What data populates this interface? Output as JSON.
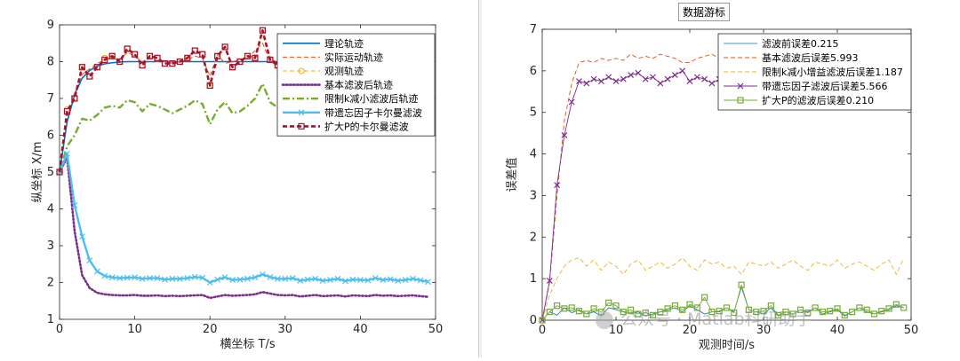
{
  "chart_data": [
    {
      "type": "line",
      "title": "",
      "xlabel": "横坐标 T/s",
      "ylabel": "纵坐标 X/m",
      "xlim": [
        0,
        50
      ],
      "ylim": [
        1,
        9
      ],
      "xticks": [
        0,
        10,
        20,
        30,
        40,
        50
      ],
      "yticks": [
        1,
        2,
        3,
        4,
        5,
        6,
        7,
        8,
        9
      ],
      "legend_position": "top-right",
      "x": [
        0,
        1,
        2,
        3,
        4,
        5,
        6,
        7,
        8,
        9,
        10,
        11,
        12,
        13,
        14,
        15,
        16,
        17,
        18,
        19,
        20,
        21,
        22,
        23,
        24,
        25,
        26,
        27,
        28,
        29,
        30,
        31,
        32,
        33,
        34,
        35,
        36,
        37,
        38,
        39,
        40,
        41,
        42,
        43,
        44,
        45,
        46,
        47,
        48,
        49
      ],
      "series": [
        {
          "name": "理论轨迹",
          "color": "#0072BD",
          "style": "solid",
          "marker": "none",
          "values": [
            5,
            6.36,
            7.1,
            7.55,
            7.76,
            7.88,
            7.94,
            7.97,
            7.99,
            8,
            8,
            8,
            8,
            8,
            8,
            8,
            8,
            8,
            8,
            8,
            8,
            8,
            8,
            8,
            8,
            8,
            8,
            8,
            8,
            8,
            8,
            8,
            8,
            8,
            8,
            8,
            8,
            8,
            8,
            8,
            8,
            8,
            8,
            8,
            8,
            8,
            8,
            8,
            8,
            8
          ]
        },
        {
          "name": "实际运动轨迹",
          "color": "#D95319",
          "style": "dashed",
          "marker": "none",
          "values": [
            5,
            6.5,
            7.15,
            7.65,
            7.8,
            7.95,
            8.05,
            8.1,
            8.05,
            8.25,
            8.15,
            8.0,
            8.1,
            8.0,
            8.0,
            7.95,
            8.0,
            8.05,
            8.15,
            8.1,
            7.6,
            8.2,
            7.95,
            8.0,
            8.05,
            8.1,
            8.3,
            8.5,
            8.0,
            8.05,
            8.15,
            8.1,
            8.0,
            8.05,
            7.95,
            8.0,
            8.05,
            8.0,
            8.1,
            8.0,
            7.95,
            8.0,
            8.05,
            8.0,
            8.05,
            7.95,
            8.0,
            8.05,
            8.0,
            7.9
          ]
        },
        {
          "name": "观测轨迹",
          "color": "#EDB120",
          "style": "dashed",
          "marker": "circle",
          "values": [
            5,
            6.7,
            7.0,
            7.85,
            7.6,
            7.85,
            8.1,
            8.15,
            8.0,
            8.35,
            8.2,
            7.9,
            8.15,
            8.1,
            7.95,
            7.95,
            8.0,
            8.1,
            8.3,
            8.2,
            7.35,
            8.15,
            8.4,
            7.85,
            8.0,
            8.15,
            8.1,
            8.85,
            8.05,
            7.9,
            7.95,
            8.3,
            7.85,
            8.05,
            8.15,
            7.9,
            8.0,
            8.15,
            7.85,
            8.1,
            8.05,
            7.95,
            8.25,
            8.0,
            8.1,
            7.9,
            8.05,
            7.95,
            7.85,
            7.55
          ]
        },
        {
          "name": "基本滤波后轨迹",
          "color": "#7E2F8E",
          "style": "dotted",
          "marker": "none",
          "values": [
            5,
            5.4,
            3.4,
            2.2,
            1.85,
            1.72,
            1.68,
            1.66,
            1.65,
            1.65,
            1.66,
            1.64,
            1.64,
            1.65,
            1.63,
            1.64,
            1.63,
            1.64,
            1.65,
            1.66,
            1.58,
            1.62,
            1.66,
            1.64,
            1.65,
            1.66,
            1.68,
            1.74,
            1.7,
            1.66,
            1.65,
            1.66,
            1.62,
            1.64,
            1.66,
            1.63,
            1.64,
            1.65,
            1.62,
            1.65,
            1.64,
            1.63,
            1.66,
            1.64,
            1.65,
            1.63,
            1.64,
            1.65,
            1.63,
            1.61
          ]
        },
        {
          "name": "限制k减小滤波后轨迹",
          "color": "#77AC30",
          "style": "dashdot",
          "marker": "none",
          "values": [
            5,
            5.7,
            6.0,
            6.45,
            6.4,
            6.55,
            6.75,
            6.8,
            6.75,
            6.95,
            6.9,
            6.65,
            6.85,
            6.8,
            6.7,
            6.6,
            6.7,
            6.8,
            6.95,
            6.85,
            6.3,
            6.7,
            6.9,
            6.6,
            6.65,
            6.8,
            7.0,
            7.4,
            6.9,
            6.75,
            6.7,
            6.85,
            6.6,
            6.75,
            6.85,
            6.6,
            6.7,
            6.8,
            6.55,
            6.75,
            6.7,
            6.6,
            6.85,
            6.7,
            6.8,
            6.6,
            6.7,
            6.8,
            6.6,
            6.5
          ]
        },
        {
          "name": "带遗忘因子卡尔曼滤波",
          "color": "#4DBEEE",
          "style": "solid",
          "marker": "x",
          "values": [
            5,
            5.5,
            4.1,
            3.25,
            2.6,
            2.3,
            2.18,
            2.14,
            2.12,
            2.13,
            2.14,
            2.1,
            2.12,
            2.12,
            2.08,
            2.1,
            2.1,
            2.12,
            2.15,
            2.13,
            2.0,
            2.08,
            2.14,
            2.07,
            2.08,
            2.1,
            2.14,
            2.22,
            2.15,
            2.1,
            2.1,
            2.12,
            2.05,
            2.08,
            2.1,
            2.05,
            2.07,
            2.1,
            2.04,
            2.08,
            2.07,
            2.06,
            2.12,
            2.07,
            2.09,
            2.05,
            2.07,
            2.1,
            2.06,
            2.02
          ]
        },
        {
          "name": "扩大P的卡尔曼滤波",
          "color": "#A2142F",
          "style": "dashed",
          "marker": "square",
          "values": [
            5,
            6.65,
            7.0,
            7.85,
            7.6,
            7.85,
            8.05,
            8.15,
            8.0,
            8.35,
            8.2,
            7.9,
            8.15,
            8.1,
            7.95,
            7.95,
            8.0,
            8.1,
            8.3,
            8.2,
            7.35,
            8.15,
            8.4,
            7.85,
            8.0,
            8.15,
            8.1,
            8.85,
            8.05,
            7.9,
            7.95,
            8.3,
            7.85,
            8.05,
            8.15,
            7.9,
            8.0,
            8.15,
            7.85,
            8.1,
            8.05,
            7.95,
            8.25,
            8.0,
            8.1,
            7.9,
            8.05,
            7.95,
            7.85,
            7.55
          ]
        }
      ]
    },
    {
      "type": "line",
      "title": "数据游标",
      "xlabel": "观测时间/s",
      "ylabel": "误差值",
      "xlim": [
        0,
        50
      ],
      "ylim": [
        0,
        7
      ],
      "xticks": [
        0,
        10,
        20,
        30,
        40,
        50
      ],
      "yticks": [
        0,
        1,
        2,
        3,
        4,
        5,
        6,
        7
      ],
      "legend_position": "top-right",
      "x": [
        0,
        1,
        2,
        3,
        4,
        5,
        6,
        7,
        8,
        9,
        10,
        11,
        12,
        13,
        14,
        15,
        16,
        17,
        18,
        19,
        20,
        21,
        22,
        23,
        24,
        25,
        26,
        27,
        28,
        29,
        30,
        31,
        32,
        33,
        34,
        35,
        36,
        37,
        38,
        39,
        40,
        41,
        42,
        43,
        44,
        45,
        46,
        47,
        48,
        49
      ],
      "series": [
        {
          "name": "滤波前误差0.215",
          "color": "#0072BD",
          "style": "solid",
          "marker": "none",
          "values": [
            0,
            0.2,
            0.12,
            0.3,
            0.18,
            0.25,
            0.15,
            0.2,
            0.1,
            0.3,
            0.25,
            0.2,
            0.15,
            0.2,
            0.1,
            0.15,
            0.2,
            0.25,
            0.3,
            0.2,
            0.35,
            0.25,
            0.15,
            0.2,
            0.2,
            0.3,
            0.2,
            0.8,
            0.25,
            0.2,
            0.15,
            0.3,
            0.1,
            0.2,
            0.15,
            0.25,
            0.2,
            0.3,
            0.15,
            0.2,
            0.25,
            0.1,
            0.2,
            0.3,
            0.2,
            0.15,
            0.2,
            0.25,
            0.35,
            0.3
          ]
        },
        {
          "name": "基本滤波后误差5.993",
          "color": "#D95319",
          "style": "dashed",
          "marker": "none",
          "values": [
            0,
            0.9,
            3.0,
            4.8,
            5.7,
            6.2,
            6.25,
            6.2,
            6.3,
            6.25,
            6.3,
            6.25,
            6.4,
            6.3,
            6.35,
            6.3,
            6.4,
            6.35,
            6.3,
            6.2,
            6.2,
            6.3,
            6.35,
            6.4,
            6.3,
            6.25,
            6.35,
            6.4,
            6.3,
            6.3,
            6.35,
            6.3,
            6.25,
            6.3,
            6.35,
            6.4,
            6.3,
            6.3,
            6.25,
            6.3,
            6.35,
            6.3,
            6.4,
            6.35,
            6.3,
            6.25,
            6.35,
            6.3,
            6.3,
            6.3
          ]
        },
        {
          "name": "限制k减小增益滤波后误差1.187",
          "color": "#EDB120",
          "style": "dashed",
          "marker": "none",
          "values": [
            0,
            0.6,
            1.0,
            1.3,
            1.45,
            1.5,
            1.3,
            1.45,
            1.2,
            1.4,
            1.3,
            1.1,
            1.35,
            1.45,
            1.2,
            1.3,
            1.4,
            1.25,
            1.35,
            1.5,
            1.3,
            1.2,
            1.45,
            1.35,
            1.4,
            1.25,
            1.3,
            1.1,
            1.4,
            1.35,
            1.3,
            1.4,
            1.25,
            1.35,
            1.45,
            1.3,
            1.2,
            1.4,
            1.35,
            1.3,
            1.45,
            1.25,
            1.35,
            1.4,
            1.3,
            1.2,
            1.35,
            1.45,
            1.1,
            1.5
          ]
        },
        {
          "name": "带遗忘因子滤波后误差5.566",
          "color": "#7E2F8E",
          "style": "solid",
          "marker": "x",
          "values": [
            0,
            0.95,
            3.25,
            4.45,
            5.25,
            5.75,
            5.7,
            5.8,
            5.75,
            5.85,
            5.75,
            5.8,
            5.9,
            5.95,
            5.8,
            5.85,
            5.7,
            5.8,
            5.9,
            6.0,
            5.75,
            5.85,
            5.8,
            5.7,
            5.8,
            5.9,
            5.85,
            6.05,
            5.8,
            5.75,
            5.85,
            5.8,
            5.9,
            5.85,
            5.95,
            5.85,
            5.8,
            5.9,
            5.75,
            5.85,
            5.9,
            5.8,
            5.85,
            5.95,
            5.9,
            5.8,
            5.85,
            5.9,
            5.95,
            5.9
          ]
        },
        {
          "name": "扩大P的滤波后误差0.210",
          "color": "#77AC30",
          "style": "solid",
          "marker": "square",
          "values": [
            0,
            0.2,
            0.35,
            0.28,
            0.3,
            0.22,
            0.15,
            0.28,
            0.2,
            0.42,
            0.35,
            0.2,
            0.25,
            0.15,
            0.18,
            0.12,
            0.2,
            0.28,
            0.35,
            0.25,
            0.38,
            0.3,
            0.55,
            0.2,
            0.22,
            0.3,
            0.18,
            0.85,
            0.25,
            0.2,
            0.22,
            0.35,
            0.12,
            0.2,
            0.15,
            0.25,
            0.18,
            0.3,
            0.2,
            0.22,
            0.28,
            0.12,
            0.2,
            0.3,
            0.25,
            0.15,
            0.22,
            0.28,
            0.38,
            0.3
          ]
        }
      ]
    }
  ],
  "watermark": {
    "text": "公众号 · Matlab科研助手"
  }
}
